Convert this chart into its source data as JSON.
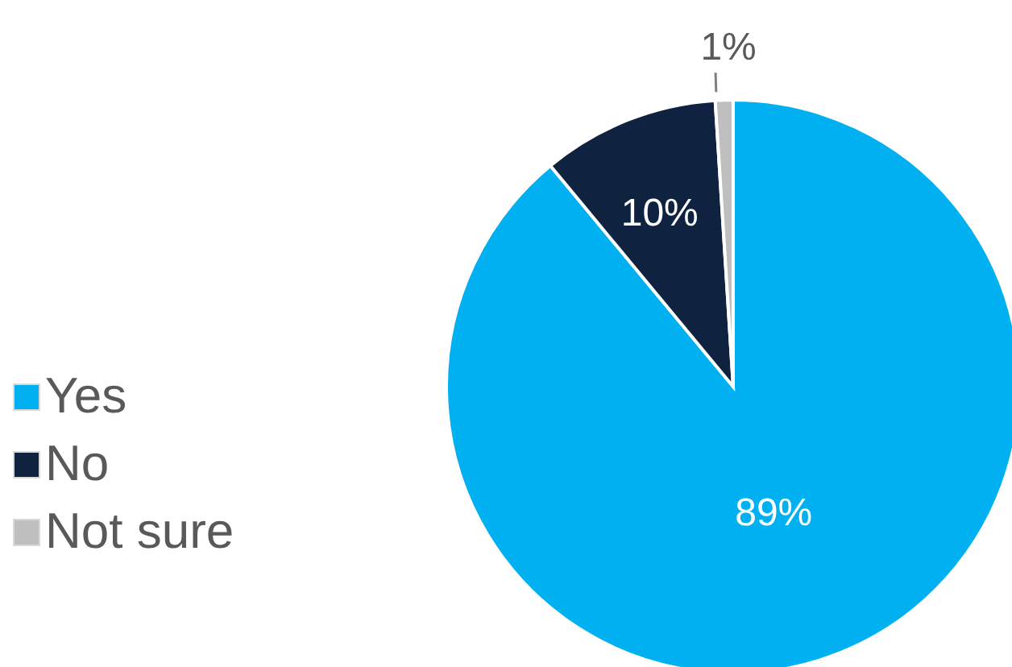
{
  "chart_data": {
    "type": "pie",
    "categories": [
      "Yes",
      "No",
      "Not sure"
    ],
    "values": [
      89,
      10,
      1
    ],
    "colors": [
      "#00b0f0",
      "#0f2340",
      "#bfbfbf"
    ],
    "value_labels": [
      "89%",
      "10%",
      "1%"
    ],
    "legend": "left"
  }
}
